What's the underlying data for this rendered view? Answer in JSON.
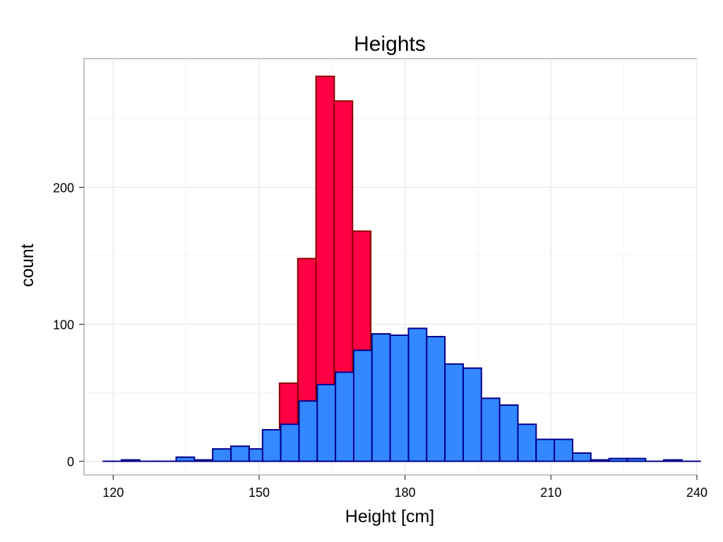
{
  "chart_data": {
    "type": "bar",
    "title": "Heights",
    "xlabel": "Height [cm]",
    "ylabel": "count",
    "xlim": [
      114,
      240
    ],
    "ylim": [
      -10,
      294
    ],
    "xticks": [
      120,
      150,
      180,
      210,
      240
    ],
    "yticks": [
      0,
      100,
      200
    ],
    "grid": true,
    "bin_width": 3.75,
    "series": [
      {
        "color": "#FF0044",
        "edge_color": "#8B0000",
        "bins": [
          {
            "x_start": 154.2,
            "value": 57
          },
          {
            "x_start": 157.95,
            "value": 148
          },
          {
            "x_start": 161.7,
            "value": 281
          },
          {
            "x_start": 165.45,
            "value": 263
          },
          {
            "x_start": 169.2,
            "value": 168
          }
        ]
      },
      {
        "color": "#3388FF",
        "edge_color": "#00008B",
        "bins": [
          {
            "x_start": 117.95,
            "value": 0
          },
          {
            "x_start": 121.7,
            "value": 1
          },
          {
            "x_start": 125.45,
            "value": 0
          },
          {
            "x_start": 129.2,
            "value": 0
          },
          {
            "x_start": 132.95,
            "value": 3
          },
          {
            "x_start": 136.7,
            "value": 1
          },
          {
            "x_start": 140.45,
            "value": 9
          },
          {
            "x_start": 144.2,
            "value": 11
          },
          {
            "x_start": 147.95,
            "value": 9
          },
          {
            "x_start": 150.7,
            "value": 23
          },
          {
            "x_start": 154.45,
            "value": 27
          },
          {
            "x_start": 158.2,
            "value": 44
          },
          {
            "x_start": 161.95,
            "value": 56
          },
          {
            "x_start": 165.7,
            "value": 65
          },
          {
            "x_start": 169.45,
            "value": 81
          },
          {
            "x_start": 173.2,
            "value": 93
          },
          {
            "x_start": 176.95,
            "value": 92
          },
          {
            "x_start": 180.7,
            "value": 97
          },
          {
            "x_start": 184.45,
            "value": 91
          },
          {
            "x_start": 188.2,
            "value": 71
          },
          {
            "x_start": 191.95,
            "value": 68
          },
          {
            "x_start": 195.7,
            "value": 46
          },
          {
            "x_start": 199.45,
            "value": 41
          },
          {
            "x_start": 203.2,
            "value": 27
          },
          {
            "x_start": 206.95,
            "value": 16
          },
          {
            "x_start": 210.7,
            "value": 16
          },
          {
            "x_start": 214.45,
            "value": 6
          },
          {
            "x_start": 218.2,
            "value": 1
          },
          {
            "x_start": 221.95,
            "value": 2
          },
          {
            "x_start": 225.7,
            "value": 2
          },
          {
            "x_start": 229.45,
            "value": 0
          },
          {
            "x_start": 233.2,
            "value": 1
          },
          {
            "x_start": 236.95,
            "value": 0
          }
        ]
      }
    ]
  }
}
